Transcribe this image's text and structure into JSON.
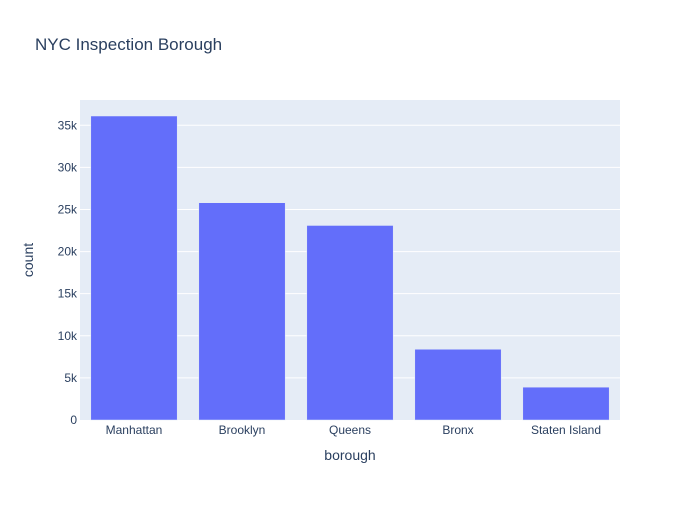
{
  "chart_data": {
    "type": "bar",
    "title": "NYC Inspection Borough",
    "xlabel": "borough",
    "ylabel": "count",
    "categories": [
      "Manhattan",
      "Brooklyn",
      "Queens",
      "Bronx",
      "Staten Island"
    ],
    "values": [
      36100,
      25800,
      23100,
      8400,
      3900
    ],
    "ylim": [
      0,
      38000
    ],
    "yticks": [
      0,
      5000,
      10000,
      15000,
      20000,
      25000,
      30000,
      35000
    ],
    "ytick_labels": [
      "0",
      "5k",
      "10k",
      "15k",
      "20k",
      "25k",
      "30k",
      "35k"
    ],
    "grid": true,
    "colors": {
      "bar": "#636efa",
      "plot_bg": "#e5ecf6",
      "grid": "#ffffff",
      "text": "#2a3f5f"
    }
  }
}
